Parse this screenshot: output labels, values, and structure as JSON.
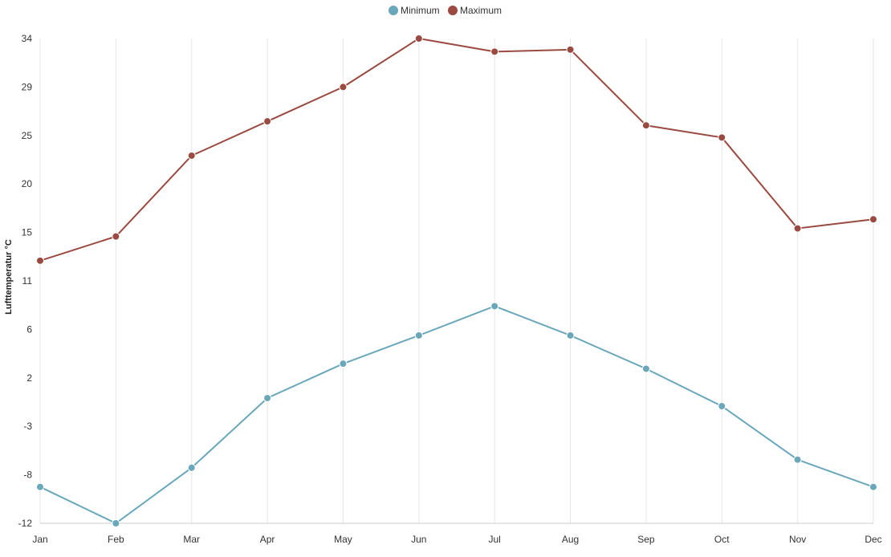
{
  "chart_data": {
    "type": "line",
    "categories": [
      "Jan",
      "Feb",
      "Mar",
      "Apr",
      "May",
      "Jun",
      "Jul",
      "Aug",
      "Sep",
      "Oct",
      "Nov",
      "Dec"
    ],
    "series": [
      {
        "name": "Minimum",
        "color": "#6aa7bb",
        "values": [
          -9.6,
          -13.2,
          -7.7,
          -0.8,
          2.6,
          5.4,
          8.3,
          5.4,
          2.1,
          -1.6,
          -6.9,
          -9.6
        ]
      },
      {
        "name": "Maximum",
        "color": "#9a4a40",
        "values": [
          12.8,
          15.2,
          23.2,
          26.6,
          30.0,
          34.8,
          33.5,
          33.7,
          26.2,
          25.0,
          16.0,
          16.9
        ]
      }
    ],
    "ylabel": "Lufttemperatur °C",
    "y_ticks": [
      "34",
      "29",
      "25",
      "20",
      "15",
      "11",
      "6",
      "2",
      "-3",
      "-8",
      "-12"
    ],
    "ylim": [
      -13.2,
      34.8
    ],
    "legend": "top-center",
    "grid": "vertical"
  }
}
